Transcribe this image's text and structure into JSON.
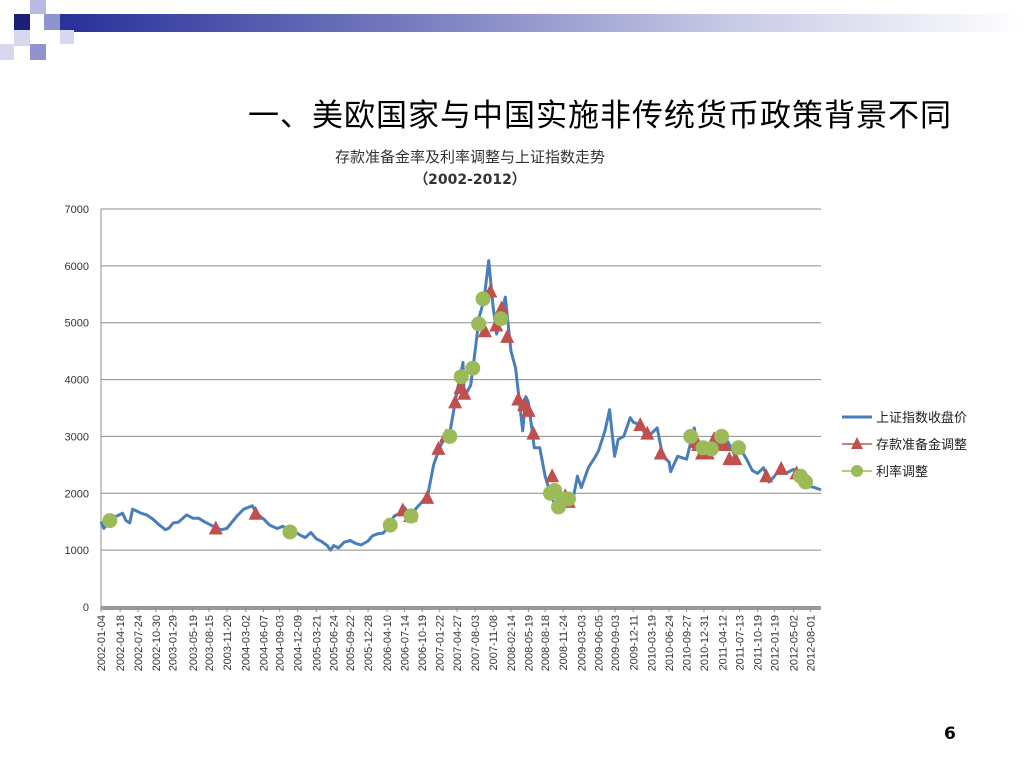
{
  "slide": {
    "title": "一、美欧国家与中国实施非传统货币政策背景不同",
    "page_number": "6"
  },
  "colors": {
    "index_line": "#4a7ebb",
    "reserve_marker": "#c0504d",
    "rate_marker": "#9bbb59",
    "deco_dark": "#1b1f7a",
    "deco_mid": "#5b60b0",
    "deco_light": "#b8bbe0"
  },
  "chart_data": {
    "type": "line",
    "title": "存款准备金率及利率调整与上证指数走势",
    "subtitle": "（2002-2012）",
    "ylim": [
      0,
      7000
    ],
    "yticks": [
      0,
      1000,
      2000,
      3000,
      4000,
      5000,
      6000,
      7000
    ],
    "xlim": [
      "2002-01-04",
      "2012-09-28"
    ],
    "grid": true,
    "legend_position": "right",
    "x_tick_labels": [
      "2002-01-04",
      "2002-04-18",
      "2002-07-24",
      "2002-10-30",
      "2003-01-29",
      "2003-05-19",
      "2003-08-15",
      "2003-11-20",
      "2004-03-02",
      "2004-06-07",
      "2004-09-03",
      "2004-12-09",
      "2005-03-21",
      "2005-06-24",
      "2005-09-22",
      "2005-12-28",
      "2006-04-10",
      "2006-07-14",
      "2006-10-19",
      "2007-01-22",
      "2007-04-27",
      "2007-08-03",
      "2007-11-08",
      "2008-02-14",
      "2008-05-19",
      "2008-08-18",
      "2008-11-24",
      "2009-03-03",
      "2009-06-05",
      "2009-09-03",
      "2009-12-11",
      "2010-03-19",
      "2010-06-24",
      "2010-09-27",
      "2010-12-31",
      "2011-04-12",
      "2011-07-13",
      "2011-10-19",
      "2012-01-19",
      "2012-05-02",
      "2012-08-01"
    ],
    "series": [
      {
        "name": "上证指数收盘价",
        "kind": "line",
        "points": [
          [
            "2002-01-04",
            1500
          ],
          [
            "2002-01-20",
            1380
          ],
          [
            "2002-02-10",
            1470
          ],
          [
            "2002-03-01",
            1560
          ],
          [
            "2002-04-01",
            1600
          ],
          [
            "2002-05-01",
            1650
          ],
          [
            "2002-05-20",
            1520
          ],
          [
            "2002-06-10",
            1480
          ],
          [
            "2002-06-25",
            1720
          ],
          [
            "2002-07-15",
            1690
          ],
          [
            "2002-08-10",
            1650
          ],
          [
            "2002-09-10",
            1620
          ],
          [
            "2002-10-15",
            1540
          ],
          [
            "2002-11-15",
            1450
          ],
          [
            "2002-12-20",
            1360
          ],
          [
            "2003-01-10",
            1390
          ],
          [
            "2003-02-01",
            1480
          ],
          [
            "2003-03-01",
            1490
          ],
          [
            "2003-04-15",
            1620
          ],
          [
            "2003-05-20",
            1560
          ],
          [
            "2003-06-20",
            1560
          ],
          [
            "2003-07-20",
            1500
          ],
          [
            "2003-08-20",
            1450
          ],
          [
            "2003-09-20",
            1400
          ],
          [
            "2003-10-20",
            1360
          ],
          [
            "2003-11-20",
            1380
          ],
          [
            "2003-12-20",
            1500
          ],
          [
            "2004-01-20",
            1620
          ],
          [
            "2004-02-20",
            1720
          ],
          [
            "2004-04-07",
            1780
          ],
          [
            "2004-05-01",
            1640
          ],
          [
            "2004-06-07",
            1550
          ],
          [
            "2004-07-10",
            1440
          ],
          [
            "2004-08-20",
            1380
          ],
          [
            "2004-09-20",
            1420
          ],
          [
            "2004-10-20",
            1360
          ],
          [
            "2004-11-20",
            1340
          ],
          [
            "2004-12-20",
            1270
          ],
          [
            "2005-01-20",
            1220
          ],
          [
            "2005-02-20",
            1310
          ],
          [
            "2005-03-21",
            1200
          ],
          [
            "2005-04-20",
            1150
          ],
          [
            "2005-05-20",
            1080
          ],
          [
            "2005-06-06",
            1000
          ],
          [
            "2005-06-24",
            1080
          ],
          [
            "2005-07-20",
            1040
          ],
          [
            "2005-08-20",
            1140
          ],
          [
            "2005-09-22",
            1170
          ],
          [
            "2005-10-20",
            1120
          ],
          [
            "2005-11-20",
            1090
          ],
          [
            "2005-12-28",
            1160
          ],
          [
            "2006-01-20",
            1250
          ],
          [
            "2006-02-20",
            1290
          ],
          [
            "2006-03-20",
            1300
          ],
          [
            "2006-04-10",
            1380
          ],
          [
            "2006-05-20",
            1600
          ],
          [
            "2006-06-20",
            1650
          ],
          [
            "2006-07-14",
            1750
          ],
          [
            "2006-08-15",
            1600
          ],
          [
            "2006-09-20",
            1750
          ],
          [
            "2006-10-19",
            1850
          ],
          [
            "2006-11-20",
            2000
          ],
          [
            "2006-12-20",
            2500
          ],
          [
            "2007-01-22",
            2800
          ],
          [
            "2007-02-20",
            3000
          ],
          [
            "2007-03-20",
            3100
          ],
          [
            "2007-04-27",
            3800
          ],
          [
            "2007-05-29",
            4300
          ],
          [
            "2007-06-05",
            3700
          ],
          [
            "2007-07-10",
            3900
          ],
          [
            "2007-08-03",
            4500
          ],
          [
            "2007-08-25",
            5100
          ],
          [
            "2007-09-20",
            5400
          ],
          [
            "2007-10-16",
            6092
          ],
          [
            "2007-11-08",
            5300
          ],
          [
            "2007-11-28",
            4800
          ],
          [
            "2007-12-20",
            5100
          ],
          [
            "2008-01-14",
            5450
          ],
          [
            "2008-02-14",
            4500
          ],
          [
            "2008-03-10",
            4200
          ],
          [
            "2008-04-18",
            3100
          ],
          [
            "2008-05-05",
            3700
          ],
          [
            "2008-05-19",
            3600
          ],
          [
            "2008-06-20",
            2800
          ],
          [
            "2008-07-20",
            2800
          ],
          [
            "2008-08-18",
            2300
          ],
          [
            "2008-09-20",
            1950
          ],
          [
            "2008-10-28",
            1670
          ],
          [
            "2008-11-24",
            1900
          ],
          [
            "2008-12-20",
            1950
          ],
          [
            "2009-01-20",
            1950
          ],
          [
            "2009-02-10",
            2300
          ],
          [
            "2009-03-03",
            2100
          ],
          [
            "2009-04-10",
            2450
          ],
          [
            "2009-05-20",
            2650
          ],
          [
            "2009-06-05",
            2750
          ],
          [
            "2009-07-10",
            3100
          ],
          [
            "2009-08-04",
            3470
          ],
          [
            "2009-08-31",
            2650
          ],
          [
            "2009-09-20",
            2950
          ],
          [
            "2009-10-20",
            3000
          ],
          [
            "2009-11-24",
            3330
          ],
          [
            "2009-12-11",
            3250
          ],
          [
            "2010-01-20",
            3200
          ],
          [
            "2010-02-20",
            3000
          ],
          [
            "2010-03-19",
            3050
          ],
          [
            "2010-04-20",
            3150
          ],
          [
            "2010-05-20",
            2650
          ],
          [
            "2010-06-24",
            2550
          ],
          [
            "2010-07-02",
            2380
          ],
          [
            "2010-08-10",
            2650
          ],
          [
            "2010-09-27",
            2600
          ],
          [
            "2010-11-08",
            3150
          ],
          [
            "2010-11-20",
            2900
          ],
          [
            "2010-12-31",
            2800
          ],
          [
            "2011-01-20",
            2700
          ],
          [
            "2011-02-20",
            2900
          ],
          [
            "2011-04-12",
            3050
          ],
          [
            "2011-05-20",
            2850
          ],
          [
            "2011-06-20",
            2650
          ],
          [
            "2011-07-13",
            2800
          ],
          [
            "2011-08-20",
            2600
          ],
          [
            "2011-09-20",
            2400
          ],
          [
            "2011-10-19",
            2350
          ],
          [
            "2011-11-20",
            2450
          ],
          [
            "2011-12-20",
            2200
          ],
          [
            "2012-01-19",
            2300
          ],
          [
            "2012-02-20",
            2450
          ],
          [
            "2012-03-20",
            2350
          ],
          [
            "2012-05-02",
            2420
          ],
          [
            "2012-06-20",
            2250
          ],
          [
            "2012-08-01",
            2120
          ],
          [
            "2012-08-25",
            2100
          ],
          [
            "2012-09-28",
            2060
          ]
        ]
      },
      {
        "name": "存款准备金调整",
        "kind": "marker",
        "marker": "triangle",
        "points": [
          [
            "2003-09-21",
            1380
          ],
          [
            "2004-04-25",
            1640
          ],
          [
            "2006-07-05",
            1700
          ],
          [
            "2006-08-15",
            1600
          ],
          [
            "2006-11-15",
            1920
          ],
          [
            "2007-01-15",
            2780
          ],
          [
            "2007-02-25",
            3000
          ],
          [
            "2007-04-16",
            3600
          ],
          [
            "2007-05-15",
            3850
          ],
          [
            "2007-06-05",
            3750
          ],
          [
            "2007-09-25",
            4850
          ],
          [
            "2007-10-25",
            5550
          ],
          [
            "2007-11-26",
            4950
          ],
          [
            "2007-12-25",
            5250
          ],
          [
            "2008-01-25",
            4750
          ],
          [
            "2008-03-25",
            3650
          ],
          [
            "2008-04-25",
            3550
          ],
          [
            "2008-05-20",
            3450
          ],
          [
            "2008-06-15",
            3050
          ],
          [
            "2008-09-25",
            2300
          ],
          [
            "2008-10-15",
            2000
          ],
          [
            "2008-12-05",
            1950
          ],
          [
            "2008-12-25",
            1850
          ],
          [
            "2010-01-18",
            3200
          ],
          [
            "2010-02-25",
            3050
          ],
          [
            "2010-05-10",
            2700
          ],
          [
            "2010-11-16",
            2900
          ],
          [
            "2010-11-29",
            2850
          ],
          [
            "2010-12-20",
            2700
          ],
          [
            "2011-01-20",
            2700
          ],
          [
            "2011-02-24",
            2950
          ],
          [
            "2011-03-25",
            2850
          ],
          [
            "2011-04-21",
            2850
          ],
          [
            "2011-05-18",
            2600
          ],
          [
            "2011-06-20",
            2600
          ],
          [
            "2011-12-05",
            2300
          ],
          [
            "2012-02-24",
            2430
          ],
          [
            "2012-05-18",
            2350
          ]
        ]
      },
      {
        "name": "利率调整",
        "kind": "marker",
        "marker": "circle",
        "points": [
          [
            "2002-02-21",
            1520
          ],
          [
            "2004-10-29",
            1320
          ],
          [
            "2006-04-28",
            1440
          ],
          [
            "2006-08-19",
            1600
          ],
          [
            "2007-03-18",
            3000
          ],
          [
            "2007-05-19",
            4050
          ],
          [
            "2007-07-21",
            4200
          ],
          [
            "2007-08-22",
            4980
          ],
          [
            "2007-09-15",
            5420
          ],
          [
            "2007-12-21",
            5070
          ],
          [
            "2008-09-16",
            2000
          ],
          [
            "2008-10-09",
            2050
          ],
          [
            "2008-10-30",
            1760
          ],
          [
            "2008-11-27",
            1900
          ],
          [
            "2008-12-23",
            1900
          ],
          [
            "2010-10-20",
            3000
          ],
          [
            "2010-12-26",
            2800
          ],
          [
            "2011-02-09",
            2780
          ],
          [
            "2011-04-06",
            3000
          ],
          [
            "2011-07-07",
            2800
          ],
          [
            "2012-06-08",
            2300
          ],
          [
            "2012-07-06",
            2200
          ]
        ]
      }
    ]
  }
}
